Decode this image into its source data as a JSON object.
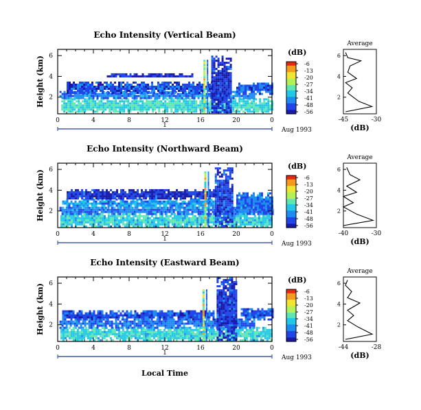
{
  "figure": {
    "panels": [
      {
        "title": "Echo Intensity (Vertical Beam)",
        "ylabel": "Height (km)",
        "date_label": "Aug 1993",
        "day_label": "1",
        "avg_title": "Average",
        "avg_xlabel": "(dB)",
        "avg_xticks": [
          "-45",
          "-30"
        ],
        "cbar_title": "(dB)"
      },
      {
        "title": "Echo Intensity (Northward Beam)",
        "ylabel": "Height (km)",
        "date_label": "Aug 1993",
        "day_label": "1",
        "avg_title": "Average",
        "avg_xlabel": "(dB)",
        "avg_xticks": [
          "-40",
          "-30"
        ],
        "cbar_title": "(dB)"
      },
      {
        "title": "Echo Intensity (Eastward Beam)",
        "ylabel": "Height (km)",
        "date_label": "Aug 1993",
        "day_label": "1",
        "avg_title": "Average",
        "avg_xlabel": "(dB)",
        "avg_xticks": [
          "-44",
          "-28"
        ],
        "cbar_title": "(dB)"
      }
    ],
    "xlabel_bottom": "Local Time",
    "xticks": [
      "0",
      "4",
      "8",
      "12",
      "16",
      "20",
      "0"
    ],
    "yticks": [
      "2",
      "4",
      "6"
    ],
    "colorbar_ticks": [
      "-6",
      "-13",
      "-20",
      "-27",
      "-34",
      "-41",
      "-48",
      "-56"
    ],
    "colors": {
      "scale": [
        "#1a1aa8",
        "#2046e8",
        "#1e8cf0",
        "#22c8e6",
        "#5ee6b4",
        "#b4f05a",
        "#f0e632",
        "#f59a1e",
        "#e62814"
      ]
    }
  },
  "chart_data": [
    {
      "type": "heatmap",
      "title": "Echo Intensity (Vertical Beam)",
      "xlabel": "",
      "ylabel": "Height (km)",
      "x_range_hours": [
        0,
        24
      ],
      "y_range_km": [
        0.4,
        6.6
      ],
      "colorbar_db": [
        -56,
        -6
      ],
      "layers": [
        {
          "x0": 0.4,
          "x1": 24,
          "y0": 0.6,
          "y1": 1.9,
          "db": -34
        },
        {
          "x0": 0.2,
          "x1": 22,
          "y0": 1.9,
          "y1": 2.6,
          "db": -45
        },
        {
          "x0": 1.0,
          "x1": 17.5,
          "y0": 2.5,
          "y1": 3.5,
          "db": -50
        },
        {
          "x0": 5.5,
          "x1": 15,
          "y0": 4.0,
          "y1": 4.3,
          "db": -54
        },
        {
          "x0": 17.2,
          "x1": 19.5,
          "y0": 0.6,
          "y1": 6.0,
          "db": -52
        },
        {
          "x0": 20,
          "x1": 24,
          "y0": 2.4,
          "y1": 3.4,
          "db": -48
        }
      ],
      "columns": [
        {
          "x": 16.4,
          "y0": 0.6,
          "y1": 5.6,
          "db": -8
        }
      ],
      "average_profile": {
        "title": "Average",
        "xlabel": "(dB)",
        "xlim": [
          -45,
          -30
        ],
        "points": [
          [
            -44,
            0.6
          ],
          [
            -32,
            1.1
          ],
          [
            -38,
            1.6
          ],
          [
            -43,
            2.4
          ],
          [
            -41,
            2.9
          ],
          [
            -44,
            3.4
          ],
          [
            -39,
            3.8
          ],
          [
            -43,
            4.4
          ],
          [
            -42,
            5.0
          ],
          [
            -37,
            5.5
          ],
          [
            -43,
            5.8
          ],
          [
            -44,
            6.3
          ]
        ]
      }
    },
    {
      "type": "heatmap",
      "title": "Echo Intensity (Northward Beam)",
      "xlabel": "",
      "ylabel": "Height (km)",
      "x_range_hours": [
        0,
        24
      ],
      "y_range_km": [
        0.4,
        6.6
      ],
      "colorbar_db": [
        -56,
        -6
      ],
      "layers": [
        {
          "x0": 0.3,
          "x1": 24,
          "y0": 0.6,
          "y1": 1.8,
          "db": -36
        },
        {
          "x0": 0.2,
          "x1": 24,
          "y0": 1.8,
          "y1": 2.4,
          "db": -46
        },
        {
          "x0": 0.5,
          "x1": 17.5,
          "y0": 2.4,
          "y1": 3.2,
          "db": -42
        },
        {
          "x0": 1.0,
          "x1": 18.0,
          "y0": 3.2,
          "y1": 4.1,
          "db": -52
        },
        {
          "x0": 17.6,
          "x1": 19.6,
          "y0": 0.6,
          "y1": 6.2,
          "db": -50
        },
        {
          "x0": 20,
          "x1": 24,
          "y0": 1.8,
          "y1": 3.8,
          "db": -46
        }
      ],
      "columns": [
        {
          "x": 16.5,
          "y0": 0.6,
          "y1": 5.8,
          "db": -10
        }
      ],
      "average_profile": {
        "title": "Average",
        "xlabel": "(dB)",
        "xlim": [
          -40,
          -30
        ],
        "points": [
          [
            -42,
            0.6
          ],
          [
            -31,
            1.1
          ],
          [
            -36,
            1.7
          ],
          [
            -40,
            2.4
          ],
          [
            -37,
            2.8
          ],
          [
            -40,
            3.4
          ],
          [
            -36,
            3.8
          ],
          [
            -39,
            4.4
          ],
          [
            -35,
            5.0
          ],
          [
            -38,
            5.5
          ],
          [
            -39,
            6.2
          ]
        ]
      }
    },
    {
      "type": "heatmap",
      "title": "Echo Intensity (Eastward Beam)",
      "xlabel": "Local Time",
      "ylabel": "Height (km)",
      "x_range_hours": [
        0,
        24
      ],
      "y_range_km": [
        0.4,
        6.6
      ],
      "colorbar_db": [
        -56,
        -6
      ],
      "layers": [
        {
          "x0": 0.3,
          "x1": 24,
          "y0": 0.6,
          "y1": 1.8,
          "db": -35
        },
        {
          "x0": 0.2,
          "x1": 22,
          "y0": 1.8,
          "y1": 2.6,
          "db": -46
        },
        {
          "x0": 0.5,
          "x1": 17.5,
          "y0": 2.6,
          "y1": 3.4,
          "db": -49
        },
        {
          "x0": 17.8,
          "x1": 20.0,
          "y0": 0.6,
          "y1": 6.6,
          "db": -51
        },
        {
          "x0": 20.5,
          "x1": 24,
          "y0": 2.6,
          "y1": 3.6,
          "db": -48
        }
      ],
      "columns": [
        {
          "x": 16.3,
          "y0": 0.6,
          "y1": 5.4,
          "db": -9
        }
      ],
      "average_profile": {
        "title": "Average",
        "xlabel": "(dB)",
        "xlim": [
          -44,
          -28
        ],
        "points": [
          [
            -43,
            0.6
          ],
          [
            -30,
            1.1
          ],
          [
            -37,
            1.8
          ],
          [
            -42,
            2.4
          ],
          [
            -39,
            2.9
          ],
          [
            -42,
            3.4
          ],
          [
            -36,
            4.1
          ],
          [
            -42,
            4.6
          ],
          [
            -40,
            5.2
          ],
          [
            -43,
            5.8
          ],
          [
            -42,
            6.3
          ]
        ]
      }
    }
  ]
}
